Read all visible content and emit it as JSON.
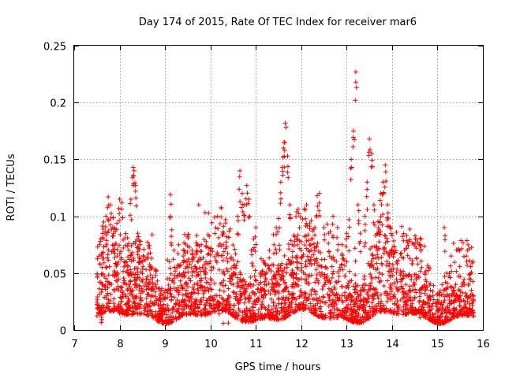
{
  "chart_data": {
    "type": "scatter",
    "title": "Day 174 of 2015, Rate Of TEC Index for receiver mar6",
    "xlabel": "GPS time / hours",
    "ylabel": "ROTI / TECUs",
    "xlim": [
      7,
      16
    ],
    "ylim": [
      0,
      0.25
    ],
    "x_ticks": [
      7,
      8,
      9,
      10,
      11,
      12,
      13,
      14,
      15,
      16
    ],
    "x_tick_labels": [
      "7",
      "8",
      "9",
      "10",
      "11",
      "12",
      "13",
      "14",
      "15",
      "16"
    ],
    "y_ticks": [
      0,
      0.05,
      0.1,
      0.15,
      0.2,
      0.25
    ],
    "y_tick_labels": [
      "0",
      "0.05",
      "0.1",
      "0.15",
      "0.2",
      "0.25"
    ],
    "grid": true,
    "marker": "+",
    "series": [
      {
        "name": "ROTI",
        "color": "#ff0000",
        "x_range": [
          7.5,
          15.8
        ],
        "points": [
          [
            7.6,
            0.02
          ],
          [
            7.62,
            0.063
          ],
          [
            7.65,
            0.095
          ],
          [
            7.7,
            0.1
          ],
          [
            7.75,
            0.117
          ],
          [
            7.8,
            0.11
          ],
          [
            7.85,
            0.09
          ],
          [
            7.9,
            0.075
          ],
          [
            7.95,
            0.065
          ],
          [
            8.0,
            0.115
          ],
          [
            8.05,
            0.112
          ],
          [
            8.1,
            0.06
          ],
          [
            8.15,
            0.04
          ],
          [
            8.2,
            0.07
          ],
          [
            8.25,
            0.115
          ],
          [
            8.3,
            0.143
          ],
          [
            8.32,
            0.14
          ],
          [
            8.35,
            0.127
          ],
          [
            8.4,
            0.085
          ],
          [
            8.45,
            0.075
          ],
          [
            8.5,
            0.06
          ],
          [
            8.6,
            0.045
          ],
          [
            8.7,
            0.03
          ],
          [
            8.8,
            0.04
          ],
          [
            8.9,
            0.03
          ],
          [
            9.0,
            0.035
          ],
          [
            9.05,
            0.045
          ],
          [
            9.1,
            0.06
          ],
          [
            9.12,
            0.119
          ],
          [
            9.15,
            0.088
          ],
          [
            9.2,
            0.07
          ],
          [
            9.3,
            0.075
          ],
          [
            9.4,
            0.065
          ],
          [
            9.5,
            0.06
          ],
          [
            9.6,
            0.07
          ],
          [
            9.7,
            0.083
          ],
          [
            9.8,
            0.075
          ],
          [
            9.9,
            0.06
          ],
          [
            10.0,
            0.045
          ],
          [
            10.1,
            0.03
          ],
          [
            10.2,
            0.03
          ],
          [
            10.3,
            0.025
          ],
          [
            10.4,
            0.03
          ],
          [
            10.5,
            0.04
          ],
          [
            10.6,
            0.1
          ],
          [
            10.65,
            0.14
          ],
          [
            10.7,
            0.12
          ],
          [
            10.75,
            0.11
          ],
          [
            10.8,
            0.127
          ],
          [
            10.85,
            0.115
          ],
          [
            10.9,
            0.07
          ],
          [
            10.95,
            0.08
          ],
          [
            11.0,
            0.09
          ],
          [
            11.1,
            0.05
          ],
          [
            11.2,
            0.04
          ],
          [
            11.3,
            0.07
          ],
          [
            11.4,
            0.075
          ],
          [
            11.45,
            0.09
          ],
          [
            11.5,
            0.098
          ],
          [
            11.55,
            0.13
          ],
          [
            11.6,
            0.152
          ],
          [
            11.62,
            0.165
          ],
          [
            11.65,
            0.182
          ],
          [
            11.7,
            0.153
          ],
          [
            11.75,
            0.11
          ],
          [
            11.8,
            0.075
          ],
          [
            11.9,
            0.08
          ],
          [
            12.0,
            0.07
          ],
          [
            12.1,
            0.06
          ],
          [
            12.2,
            0.075
          ],
          [
            12.3,
            0.09
          ],
          [
            12.35,
            0.118
          ],
          [
            12.4,
            0.12
          ],
          [
            12.5,
            0.09
          ],
          [
            12.6,
            0.085
          ],
          [
            12.7,
            0.1
          ],
          [
            12.8,
            0.09
          ],
          [
            12.9,
            0.075
          ],
          [
            13.0,
            0.085
          ],
          [
            13.05,
            0.097
          ],
          [
            13.1,
            0.15
          ],
          [
            13.15,
            0.175
          ],
          [
            13.2,
            0.227
          ],
          [
            13.25,
            0.11
          ],
          [
            13.3,
            0.085
          ],
          [
            13.4,
            0.1
          ],
          [
            13.45,
            0.13
          ],
          [
            13.5,
            0.168
          ],
          [
            13.55,
            0.155
          ],
          [
            13.6,
            0.11
          ],
          [
            13.7,
            0.09
          ],
          [
            13.75,
            0.12
          ],
          [
            13.8,
            0.13
          ],
          [
            13.85,
            0.145
          ],
          [
            13.9,
            0.11
          ],
          [
            14.0,
            0.07
          ],
          [
            14.1,
            0.06
          ],
          [
            14.2,
            0.05
          ],
          [
            14.3,
            0.04
          ],
          [
            14.4,
            0.035
          ],
          [
            14.5,
            0.04
          ],
          [
            14.6,
            0.035
          ],
          [
            14.7,
            0.025
          ],
          [
            14.8,
            0.02
          ],
          [
            14.9,
            0.03
          ],
          [
            15.0,
            0.025
          ],
          [
            15.05,
            0.03
          ],
          [
            15.1,
            0.04
          ],
          [
            15.15,
            0.09
          ],
          [
            15.2,
            0.05
          ],
          [
            15.3,
            0.065
          ],
          [
            15.4,
            0.04
          ],
          [
            15.5,
            0.03
          ],
          [
            15.6,
            0.025
          ],
          [
            15.7,
            0.045
          ],
          [
            15.75,
            0.035
          ]
        ]
      }
    ]
  }
}
